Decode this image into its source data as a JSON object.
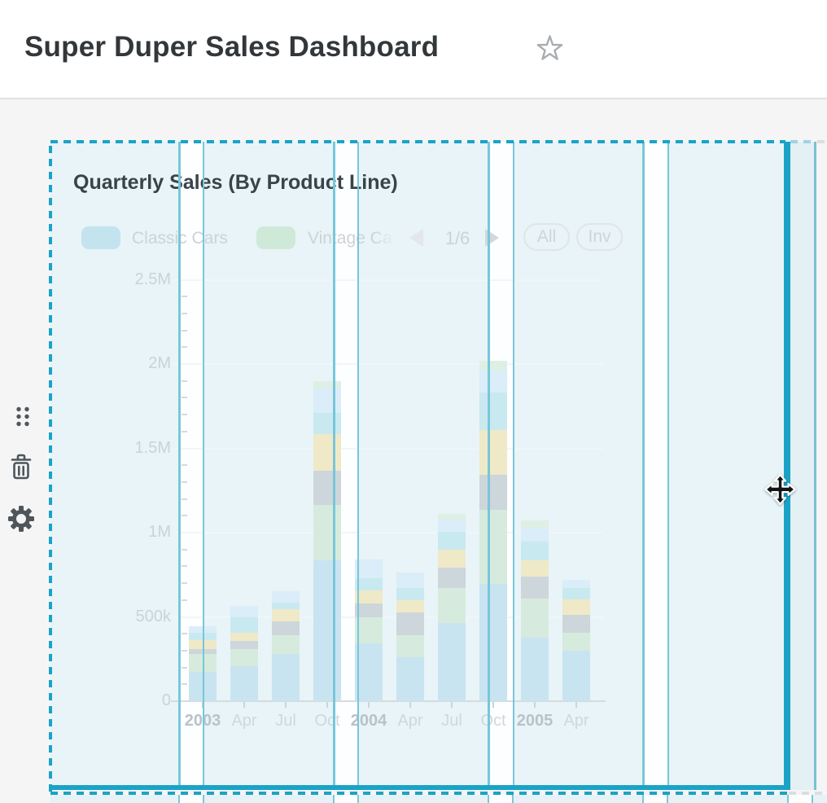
{
  "header": {
    "title": "Super Duper Sales Dashboard",
    "favorited": false
  },
  "toolbar_icons": [
    {
      "name": "drag-handle"
    },
    {
      "name": "trash"
    },
    {
      "name": "gear"
    }
  ],
  "cursor": {
    "name": "move-cursor"
  },
  "card": {
    "title": "Quarterly Sales (By Product Line)",
    "legend": {
      "items": [
        {
          "label": "Classic Cars",
          "color": "#c3e3ef"
        },
        {
          "label": "Vintage Ca",
          "color": "#cfe9d9"
        }
      ],
      "pager": "1/6",
      "select_all_label": "All",
      "invert_label": "Inv"
    }
  },
  "chart_data": {
    "type": "bar",
    "stacked": true,
    "title": "Quarterly Sales (By Product Line)",
    "categories": [
      "2003",
      "Apr",
      "Jul",
      "Oct",
      "2004",
      "Apr",
      "Jul",
      "Oct",
      "2005",
      "Apr"
    ],
    "ylim": [
      0,
      2500000
    ],
    "grid": true,
    "legend_position": "top",
    "legend_pagination": "1/6",
    "yticks": [
      {
        "value": 2500000,
        "label": "2.5M"
      },
      {
        "value": 2000000,
        "label": "2M"
      },
      {
        "value": 1500000,
        "label": "1.5M"
      },
      {
        "value": 1000000,
        "label": "1M"
      },
      {
        "value": 500000,
        "label": "500k"
      },
      {
        "value": 0,
        "label": "0"
      }
    ],
    "series": [
      {
        "name": "Classic Cars",
        "color": "#c9e4f1",
        "values": [
          174000,
          208000,
          280000,
          836000,
          343000,
          261000,
          464000,
          696000,
          377000,
          300000
        ]
      },
      {
        "name": "Vintage Cars",
        "color": "#d6ebdd",
        "values": [
          106000,
          101000,
          111000,
          329000,
          155000,
          130000,
          208000,
          440000,
          232000,
          106000
        ]
      },
      {
        "name": "unlabeled-3",
        "legend_hidden": true,
        "color": "#cdd6da",
        "values": [
          29000,
          49000,
          82000,
          203000,
          82000,
          135000,
          121000,
          208000,
          130000,
          106000
        ]
      },
      {
        "name": "unlabeled-4",
        "legend_hidden": true,
        "color": "#efe9c8",
        "values": [
          53000,
          48000,
          73000,
          218000,
          77000,
          72000,
          106000,
          266000,
          97000,
          92000
        ]
      },
      {
        "name": "unlabeled-5",
        "legend_hidden": true,
        "color": "#c9e9f0",
        "values": [
          44000,
          92000,
          39000,
          126000,
          72000,
          72000,
          106000,
          222000,
          111000,
          68000
        ]
      },
      {
        "name": "unlabeled-6",
        "legend_hidden": true,
        "color": "#daedf8",
        "values": [
          38000,
          67000,
          67000,
          145000,
          111000,
          92000,
          73000,
          131000,
          82000,
          48000
        ]
      },
      {
        "name": "unlabeled-7",
        "legend_hidden": true,
        "color": "#def0e4",
        "values": [
          0,
          0,
          0,
          40000,
          0,
          0,
          35000,
          56000,
          44000,
          0
        ]
      }
    ]
  }
}
